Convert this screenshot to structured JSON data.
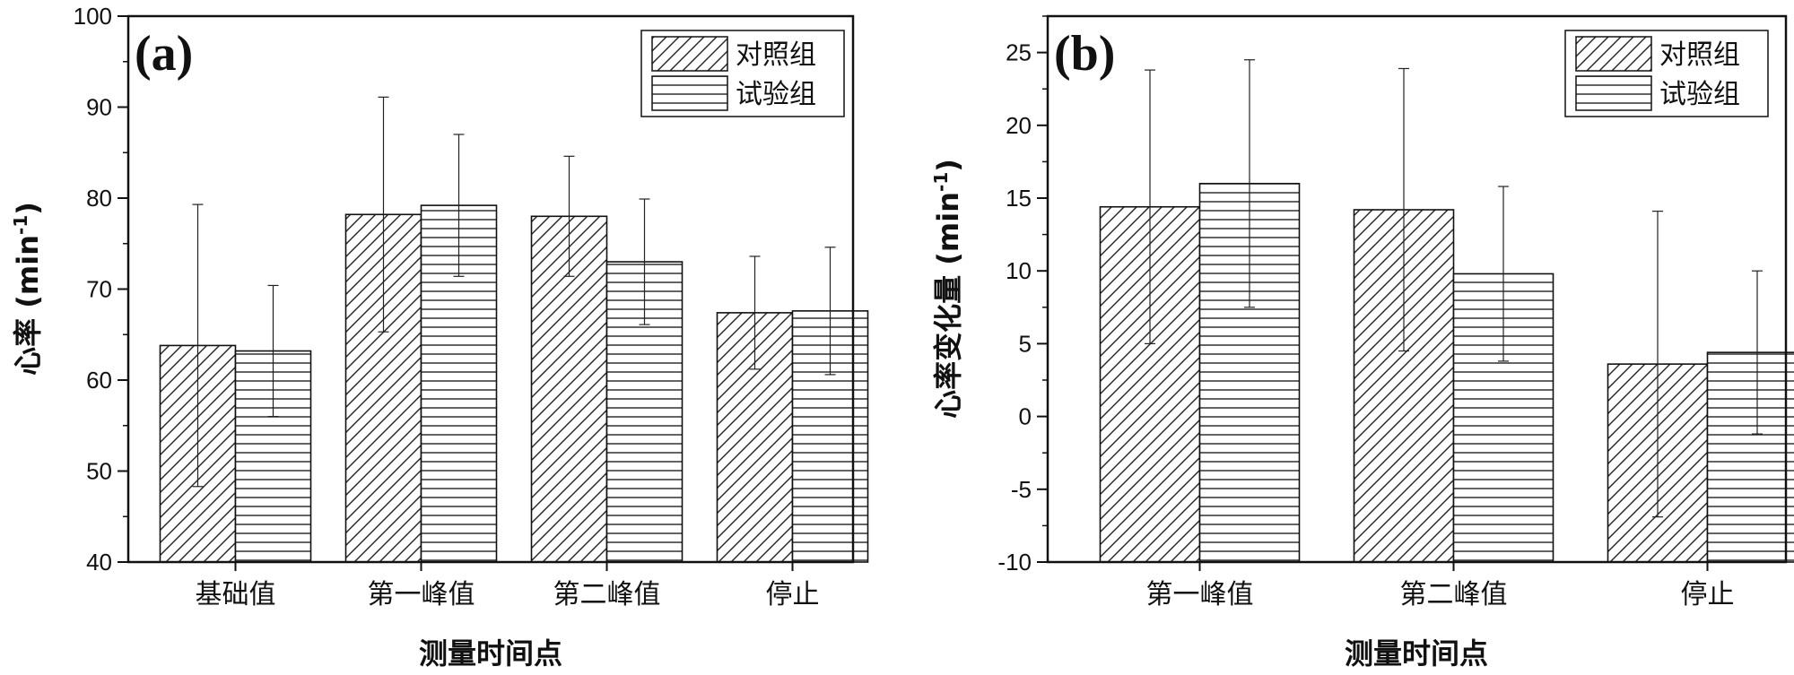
{
  "chart_data": [
    {
      "type": "bar",
      "panel_label": "(a)",
      "categories": [
        "基础值",
        "第一峰值",
        "第二峰值",
        "停止"
      ],
      "series": [
        {
          "name": "对照组",
          "values": [
            63.8,
            78.2,
            78.0,
            67.4
          ],
          "error": [
            15.5,
            12.9,
            6.6,
            6.2
          ],
          "pattern": "diagonal"
        },
        {
          "name": "试验组",
          "values": [
            63.2,
            79.2,
            73.0,
            67.6
          ],
          "error": [
            7.2,
            7.8,
            6.9,
            7.0
          ],
          "pattern": "horizontal"
        }
      ],
      "ylim": [
        40,
        100
      ],
      "yticks": [
        40,
        50,
        60,
        70,
        80,
        90,
        100
      ],
      "xlabel": "测量时间点",
      "ylabel": "心率 (min",
      "ylabel_sup": "-1",
      "ylabel_close": ")",
      "legend_position": "top-right",
      "grid": false
    },
    {
      "type": "bar",
      "panel_label": "(b)",
      "categories": [
        "第一峰值",
        "第二峰值",
        "停止"
      ],
      "series": [
        {
          "name": "对照组",
          "values": [
            14.4,
            14.2,
            3.6
          ],
          "error": [
            9.4,
            9.7,
            10.5
          ],
          "pattern": "diagonal"
        },
        {
          "name": "试验组",
          "values": [
            16.0,
            9.8,
            4.4
          ],
          "error": [
            8.5,
            6.0,
            5.6
          ],
          "pattern": "horizontal"
        }
      ],
      "ylim": [
        -10,
        27.5
      ],
      "yticks": [
        -10,
        -5,
        0,
        5,
        10,
        15,
        20,
        25
      ],
      "xlabel": "测量时间点",
      "ylabel": "心率变化量 (min",
      "ylabel_sup": "-1",
      "ylabel_close": ")",
      "legend_position": "top-right",
      "grid": false
    }
  ]
}
